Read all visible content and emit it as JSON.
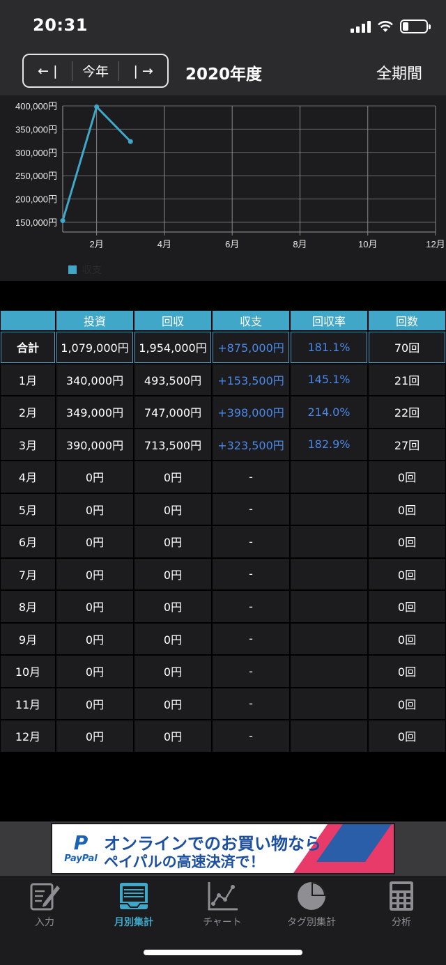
{
  "status": {
    "time": "20:31",
    "battery_level": 0.25
  },
  "header": {
    "prev_label": "← |",
    "today_label": "今年",
    "next_label": "| →",
    "title": "2020年度",
    "period_label": "全期間"
  },
  "chart_data": {
    "type": "line",
    "x": [
      1,
      2,
      3
    ],
    "series": [
      {
        "name": "収支",
        "values": [
          153500,
          398000,
          323500
        ]
      }
    ],
    "xlim": [
      1,
      12
    ],
    "ylim": [
      150000,
      400000
    ],
    "yticks": [
      "400,000円",
      "350,000円",
      "300,000円",
      "250,000円",
      "200,000円",
      "150,000円"
    ],
    "xticks": [
      "2月",
      "4月",
      "6月",
      "8月",
      "10月",
      "12月"
    ],
    "grid": true,
    "legend": "bottom-left",
    "color": "#41a7c8"
  },
  "table": {
    "headers": [
      "投資",
      "回収",
      "収支",
      "回収率",
      "回数"
    ],
    "total": {
      "label": "合計",
      "cells": [
        "1,079,000円",
        "1,954,000円",
        "+875,000円",
        "181.1%",
        "70回"
      ]
    },
    "rows": [
      {
        "label": "1月",
        "cells": [
          "340,000円",
          "493,500円",
          "+153,500円",
          "145.1%",
          "21回"
        ]
      },
      {
        "label": "2月",
        "cells": [
          "349,000円",
          "747,000円",
          "+398,000円",
          "214.0%",
          "22回"
        ]
      },
      {
        "label": "3月",
        "cells": [
          "390,000円",
          "713,500円",
          "+323,500円",
          "182.9%",
          "27回"
        ]
      },
      {
        "label": "4月",
        "cells": [
          "0円",
          "0円",
          "-",
          "",
          "0回"
        ]
      },
      {
        "label": "5月",
        "cells": [
          "0円",
          "0円",
          "-",
          "",
          "0回"
        ]
      },
      {
        "label": "6月",
        "cells": [
          "0円",
          "0円",
          "-",
          "",
          "0回"
        ]
      },
      {
        "label": "7月",
        "cells": [
          "0円",
          "0円",
          "-",
          "",
          "0回"
        ]
      },
      {
        "label": "8月",
        "cells": [
          "0円",
          "0円",
          "-",
          "",
          "0回"
        ]
      },
      {
        "label": "9月",
        "cells": [
          "0円",
          "0円",
          "-",
          "",
          "0回"
        ]
      },
      {
        "label": "10月",
        "cells": [
          "0円",
          "0円",
          "-",
          "",
          "0回"
        ]
      },
      {
        "label": "11月",
        "cells": [
          "0円",
          "0円",
          "-",
          "",
          "0回"
        ]
      },
      {
        "label": "12月",
        "cells": [
          "0円",
          "0円",
          "-",
          "",
          "0回"
        ]
      }
    ]
  },
  "ad": {
    "brand": "PayPal",
    "line1": "オンラインでのお買い物なら",
    "line2": "ペイパルの高速決済で！"
  },
  "tabs": [
    {
      "label": "入力",
      "icon": "pencil-note-icon"
    },
    {
      "label": "月別集計",
      "icon": "calendar-table-icon"
    },
    {
      "label": "チャート",
      "icon": "line-chart-icon"
    },
    {
      "label": "タグ別集計",
      "icon": "pie-chart-icon"
    },
    {
      "label": "分析",
      "icon": "calculator-icon"
    }
  ],
  "colors": {
    "accent": "#41a7c8",
    "positive": "#4a87e8"
  }
}
